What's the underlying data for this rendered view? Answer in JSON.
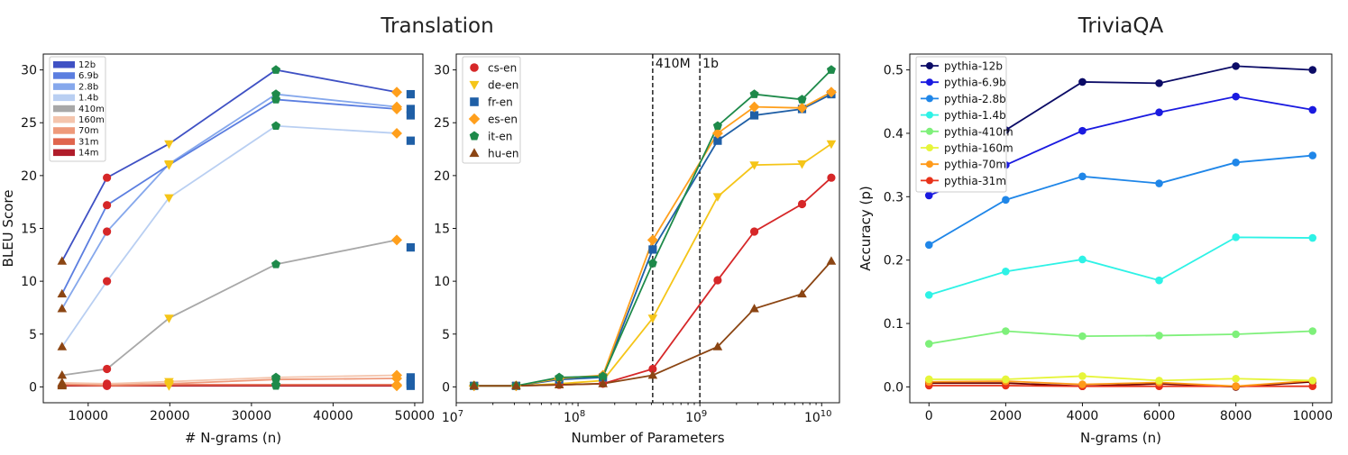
{
  "titles": {
    "translation": "Translation",
    "triviaqa": "TriviaQA"
  },
  "colors": {
    "model_line_colors": {
      "12b": "#3f51c4",
      "6.9b": "#5b7ee0",
      "2.8b": "#86a8ec",
      "1.4b": "#b9cff2",
      "410m": "#a8a8a8",
      "160m": "#f4c5ad",
      "70m": "#ee9a7b",
      "31m": "#e0654d",
      "14m": "#b01c2a"
    },
    "pair_colors": {
      "cs-en": "#d62728",
      "de-en": "#f5c518",
      "fr-en": "#1f5fa6",
      "es-en": "#ff9f1c",
      "it-en": "#1e8a4a",
      "hu-en": "#8b4513"
    },
    "pair_markers": {
      "cs-en": "circle",
      "de-en": "triangle-down",
      "fr-en": "square",
      "es-en": "diamond",
      "it-en": "pentagon",
      "hu-en": "triangle-up"
    }
  },
  "chart_data": [
    {
      "type": "line",
      "title": "Translation",
      "xlabel": "# N-grams (n)",
      "ylabel": "BLEU Score",
      "xlim": [
        4500,
        51000
      ],
      "ylim": [
        -1.5,
        31.5
      ],
      "xticks": [
        10000,
        20000,
        30000,
        40000,
        50000
      ],
      "yticks": [
        0,
        5,
        10,
        15,
        20,
        25,
        30
      ],
      "legend": {
        "placement": "top-left",
        "entries": [
          "12b",
          "6.9b",
          "2.8b",
          "1.4b",
          "410m",
          "160m",
          "70m",
          "31m",
          "14m"
        ]
      },
      "series": [
        {
          "name": "12b",
          "x": [
            6800,
            12300,
            19900,
            33000,
            47800
          ],
          "y": [
            11.9,
            19.8,
            23.0,
            30.0,
            27.9
          ],
          "end_y": 27.7,
          "markers": [
            "triangle-up",
            "circle",
            "triangle-down",
            "pentagon",
            "diamond"
          ]
        },
        {
          "name": "6.9b",
          "x": [
            6800,
            12300,
            19900,
            33000,
            47800
          ],
          "y": [
            8.8,
            17.2,
            21.0,
            27.2,
            26.3
          ],
          "end_y": 26.3,
          "markers": [
            "triangle-up",
            "circle",
            "triangle-down",
            "pentagon",
            "diamond"
          ]
        },
        {
          "name": "2.8b",
          "x": [
            6800,
            12300,
            19900,
            33000,
            47800
          ],
          "y": [
            7.4,
            14.7,
            21.1,
            27.7,
            26.5
          ],
          "end_y": 25.7,
          "markers": [
            "triangle-up",
            "circle",
            "triangle-down",
            "pentagon",
            "diamond"
          ]
        },
        {
          "name": "1.4b",
          "x": [
            6800,
            12300,
            19900,
            33000,
            47800
          ],
          "y": [
            3.8,
            10.0,
            17.9,
            24.7,
            24.0
          ],
          "end_y": 23.3,
          "markers": [
            "triangle-up",
            "circle",
            "triangle-down",
            "pentagon",
            "diamond"
          ]
        },
        {
          "name": "410m",
          "x": [
            6800,
            12300,
            19900,
            33000,
            47800
          ],
          "y": [
            1.1,
            1.7,
            6.5,
            11.6,
            13.9
          ],
          "end_y": 13.2,
          "markers": [
            "triangle-up",
            "circle",
            "triangle-down",
            "pentagon",
            "diamond"
          ]
        },
        {
          "name": "160m",
          "x": [
            6800,
            12300,
            19900,
            33000,
            47800
          ],
          "y": [
            0.4,
            0.3,
            0.5,
            0.9,
            1.1
          ],
          "end_y": 0.9,
          "markers": [
            "triangle-up",
            "circle",
            "triangle-down",
            "pentagon",
            "diamond"
          ]
        },
        {
          "name": "70m",
          "x": [
            6800,
            12300,
            19900,
            33000,
            47800
          ],
          "y": [
            0.3,
            0.2,
            0.3,
            0.7,
            0.8
          ],
          "end_y": 0.6,
          "markers": [
            "triangle-up",
            "circle",
            "triangle-down",
            "pentagon",
            "diamond"
          ]
        },
        {
          "name": "31m",
          "x": [
            6800,
            12300,
            19900,
            33000,
            47800
          ],
          "y": [
            0.2,
            0.1,
            0.2,
            0.2,
            0.2
          ],
          "end_y": 0.3,
          "markers": [
            "triangle-up",
            "circle",
            "triangle-down",
            "pentagon",
            "diamond"
          ]
        },
        {
          "name": "14m",
          "x": [
            6800,
            12300,
            19900,
            33000,
            47800
          ],
          "y": [
            0.1,
            0.1,
            0.1,
            0.1,
            0.1
          ],
          "end_y": 0.1,
          "markers": [
            "triangle-up",
            "circle",
            "triangle-down",
            "pentagon",
            "diamond"
          ]
        }
      ],
      "end_x": 49500
    },
    {
      "type": "line",
      "xlabel": "Number of Parameters",
      "ylabel": "",
      "xscale": "log",
      "xlim": [
        10000000,
        14000000000
      ],
      "ylim": [
        -1.5,
        31.5
      ],
      "xticks": [
        10000000,
        100000000,
        1000000000,
        10000000000
      ],
      "xtick_labels": [
        {
          "base": "10",
          "exp": "7"
        },
        {
          "base": "10",
          "exp": "8"
        },
        {
          "base": "10",
          "exp": "9"
        },
        {
          "base": "10",
          "exp": "10"
        }
      ],
      "yticks": [
        0,
        5,
        10,
        15,
        20,
        25,
        30
      ],
      "vlines": [
        {
          "x": 410000000,
          "label": "410M"
        },
        {
          "x": 1000000000,
          "label": "1b"
        }
      ],
      "legend": {
        "placement": "top-left",
        "entries": [
          "cs-en",
          "de-en",
          "fr-en",
          "es-en",
          "it-en",
          "hu-en"
        ]
      },
      "x": [
        14000000,
        31000000,
        70000000,
        160000000,
        410000000,
        1400000000,
        2800000000,
        6900000000,
        12000000000
      ],
      "series": [
        {
          "name": "cs-en",
          "y": [
            0.1,
            0.1,
            0.2,
            0.3,
            1.7,
            10.1,
            14.7,
            17.3,
            19.8
          ]
        },
        {
          "name": "de-en",
          "y": [
            0.1,
            0.1,
            0.3,
            0.6,
            6.5,
            18.0,
            21.0,
            21.1,
            23.0
          ]
        },
        {
          "name": "fr-en",
          "y": [
            0.1,
            0.1,
            0.7,
            0.9,
            13.0,
            23.3,
            25.7,
            26.3,
            27.7
          ]
        },
        {
          "name": "es-en",
          "y": [
            0.1,
            0.1,
            0.8,
            1.1,
            13.9,
            24.0,
            26.5,
            26.4,
            27.9
          ]
        },
        {
          "name": "it-en",
          "y": [
            0.1,
            0.1,
            0.9,
            1.0,
            11.7,
            24.7,
            27.7,
            27.2,
            30.0
          ]
        },
        {
          "name": "hu-en",
          "y": [
            0.1,
            0.1,
            0.2,
            0.3,
            1.1,
            3.8,
            7.4,
            8.8,
            11.9
          ]
        }
      ]
    },
    {
      "type": "line",
      "title": "TriviaQA",
      "xlabel": "N-grams (n)",
      "ylabel": "Accuracy (p)",
      "xlim": [
        -500,
        10500
      ],
      "ylim": [
        -0.025,
        0.525
      ],
      "xticks": [
        0,
        2000,
        4000,
        6000,
        8000,
        10000
      ],
      "yticks": [
        0.0,
        0.1,
        0.2,
        0.3,
        0.4,
        0.5
      ],
      "ytick_labels": [
        "0.0",
        "0.1",
        "0.2",
        "0.3",
        "0.4",
        "0.5"
      ],
      "legend": {
        "placement": "top-left",
        "entries": [
          "pythia-12b",
          "pythia-6.9b",
          "pythia-2.8b",
          "pythia-1.4b",
          "pythia-410m",
          "pythia-160m",
          "pythia-70m",
          "pythia-31m"
        ]
      },
      "x": [
        0,
        2000,
        4000,
        6000,
        8000,
        10000
      ],
      "series": [
        {
          "name": "pythia-12b",
          "color": "#0b0b66",
          "y": [
            0.355,
            0.405,
            0.481,
            0.479,
            0.506,
            0.5
          ]
        },
        {
          "name": "pythia-6.9b",
          "color": "#1a1ae0",
          "y": [
            0.302,
            0.35,
            0.404,
            0.433,
            0.458,
            0.437
          ]
        },
        {
          "name": "pythia-2.8b",
          "color": "#1f86e8",
          "y": [
            0.224,
            0.295,
            0.332,
            0.321,
            0.354,
            0.365
          ]
        },
        {
          "name": "pythia-1.4b",
          "color": "#2ef2e6",
          "y": [
            0.145,
            0.182,
            0.201,
            0.168,
            0.236,
            0.235
          ]
        },
        {
          "name": "pythia-410m",
          "color": "#7ef07a",
          "y": [
            0.068,
            0.088,
            0.08,
            0.081,
            0.083,
            0.088
          ]
        },
        {
          "name": "pythia-160m",
          "color": "#e6f53a",
          "y": [
            0.012,
            0.012,
            0.017,
            0.01,
            0.013,
            0.01
          ]
        },
        {
          "name": "pythia-70m",
          "color": "#ff9a1a",
          "y": [
            0.008,
            0.009,
            0.004,
            0.007,
            0.001,
            0.01
          ]
        },
        {
          "name": "pythia-31m",
          "color": "#e8321a",
          "y": [
            0.002,
            0.002,
            0.001,
            0.001,
            0.001,
            0.001
          ]
        },
        {
          "name": "",
          "color": "#6b0000",
          "y": [
            0.006,
            0.006,
            0.001,
            0.005,
            0.0,
            0.008
          ]
        }
      ]
    }
  ]
}
